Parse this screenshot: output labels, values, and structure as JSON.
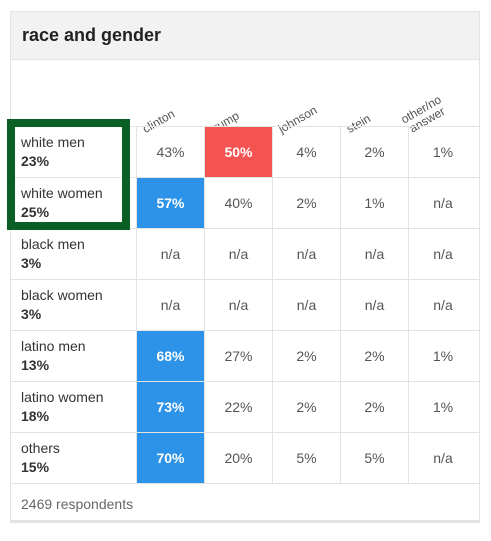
{
  "title": "race and gender",
  "columns": [
    "clinton",
    "trump",
    "johnson",
    "stein",
    "other/no answer"
  ],
  "column_lines": [
    [
      "clinton"
    ],
    [
      "trump"
    ],
    [
      "johnson"
    ],
    [
      "stein"
    ],
    [
      "other/no",
      "answer"
    ]
  ],
  "rows": [
    {
      "name": "white men",
      "share": "23%",
      "values": [
        "43%",
        "50%",
        "4%",
        "2%",
        "1%"
      ],
      "highlight": [
        null,
        "red",
        null,
        null,
        null
      ]
    },
    {
      "name": "white women",
      "share": "25%",
      "values": [
        "57%",
        "40%",
        "2%",
        "1%",
        "n/a"
      ],
      "highlight": [
        "blue",
        null,
        null,
        null,
        null
      ]
    },
    {
      "name": "black men",
      "share": "3%",
      "values": [
        "n/a",
        "n/a",
        "n/a",
        "n/a",
        "n/a"
      ],
      "highlight": [
        null,
        null,
        null,
        null,
        null
      ]
    },
    {
      "name": "black women",
      "share": "3%",
      "values": [
        "n/a",
        "n/a",
        "n/a",
        "n/a",
        "n/a"
      ],
      "highlight": [
        null,
        null,
        null,
        null,
        null
      ]
    },
    {
      "name": "latino men",
      "share": "13%",
      "values": [
        "68%",
        "27%",
        "2%",
        "2%",
        "1%"
      ],
      "highlight": [
        "blue",
        null,
        null,
        null,
        null
      ]
    },
    {
      "name": "latino women",
      "share": "18%",
      "values": [
        "73%",
        "22%",
        "2%",
        "2%",
        "1%"
      ],
      "highlight": [
        "blue",
        null,
        null,
        null,
        null
      ]
    },
    {
      "name": "others",
      "share": "15%",
      "values": [
        "70%",
        "20%",
        "5%",
        "5%",
        "n/a"
      ],
      "highlight": [
        "blue",
        null,
        null,
        null,
        null
      ]
    }
  ],
  "footer": "2469 respondents",
  "colors": {
    "blue": "#2c93e8",
    "red": "#f55252",
    "annotation": "#0a5f24"
  }
}
